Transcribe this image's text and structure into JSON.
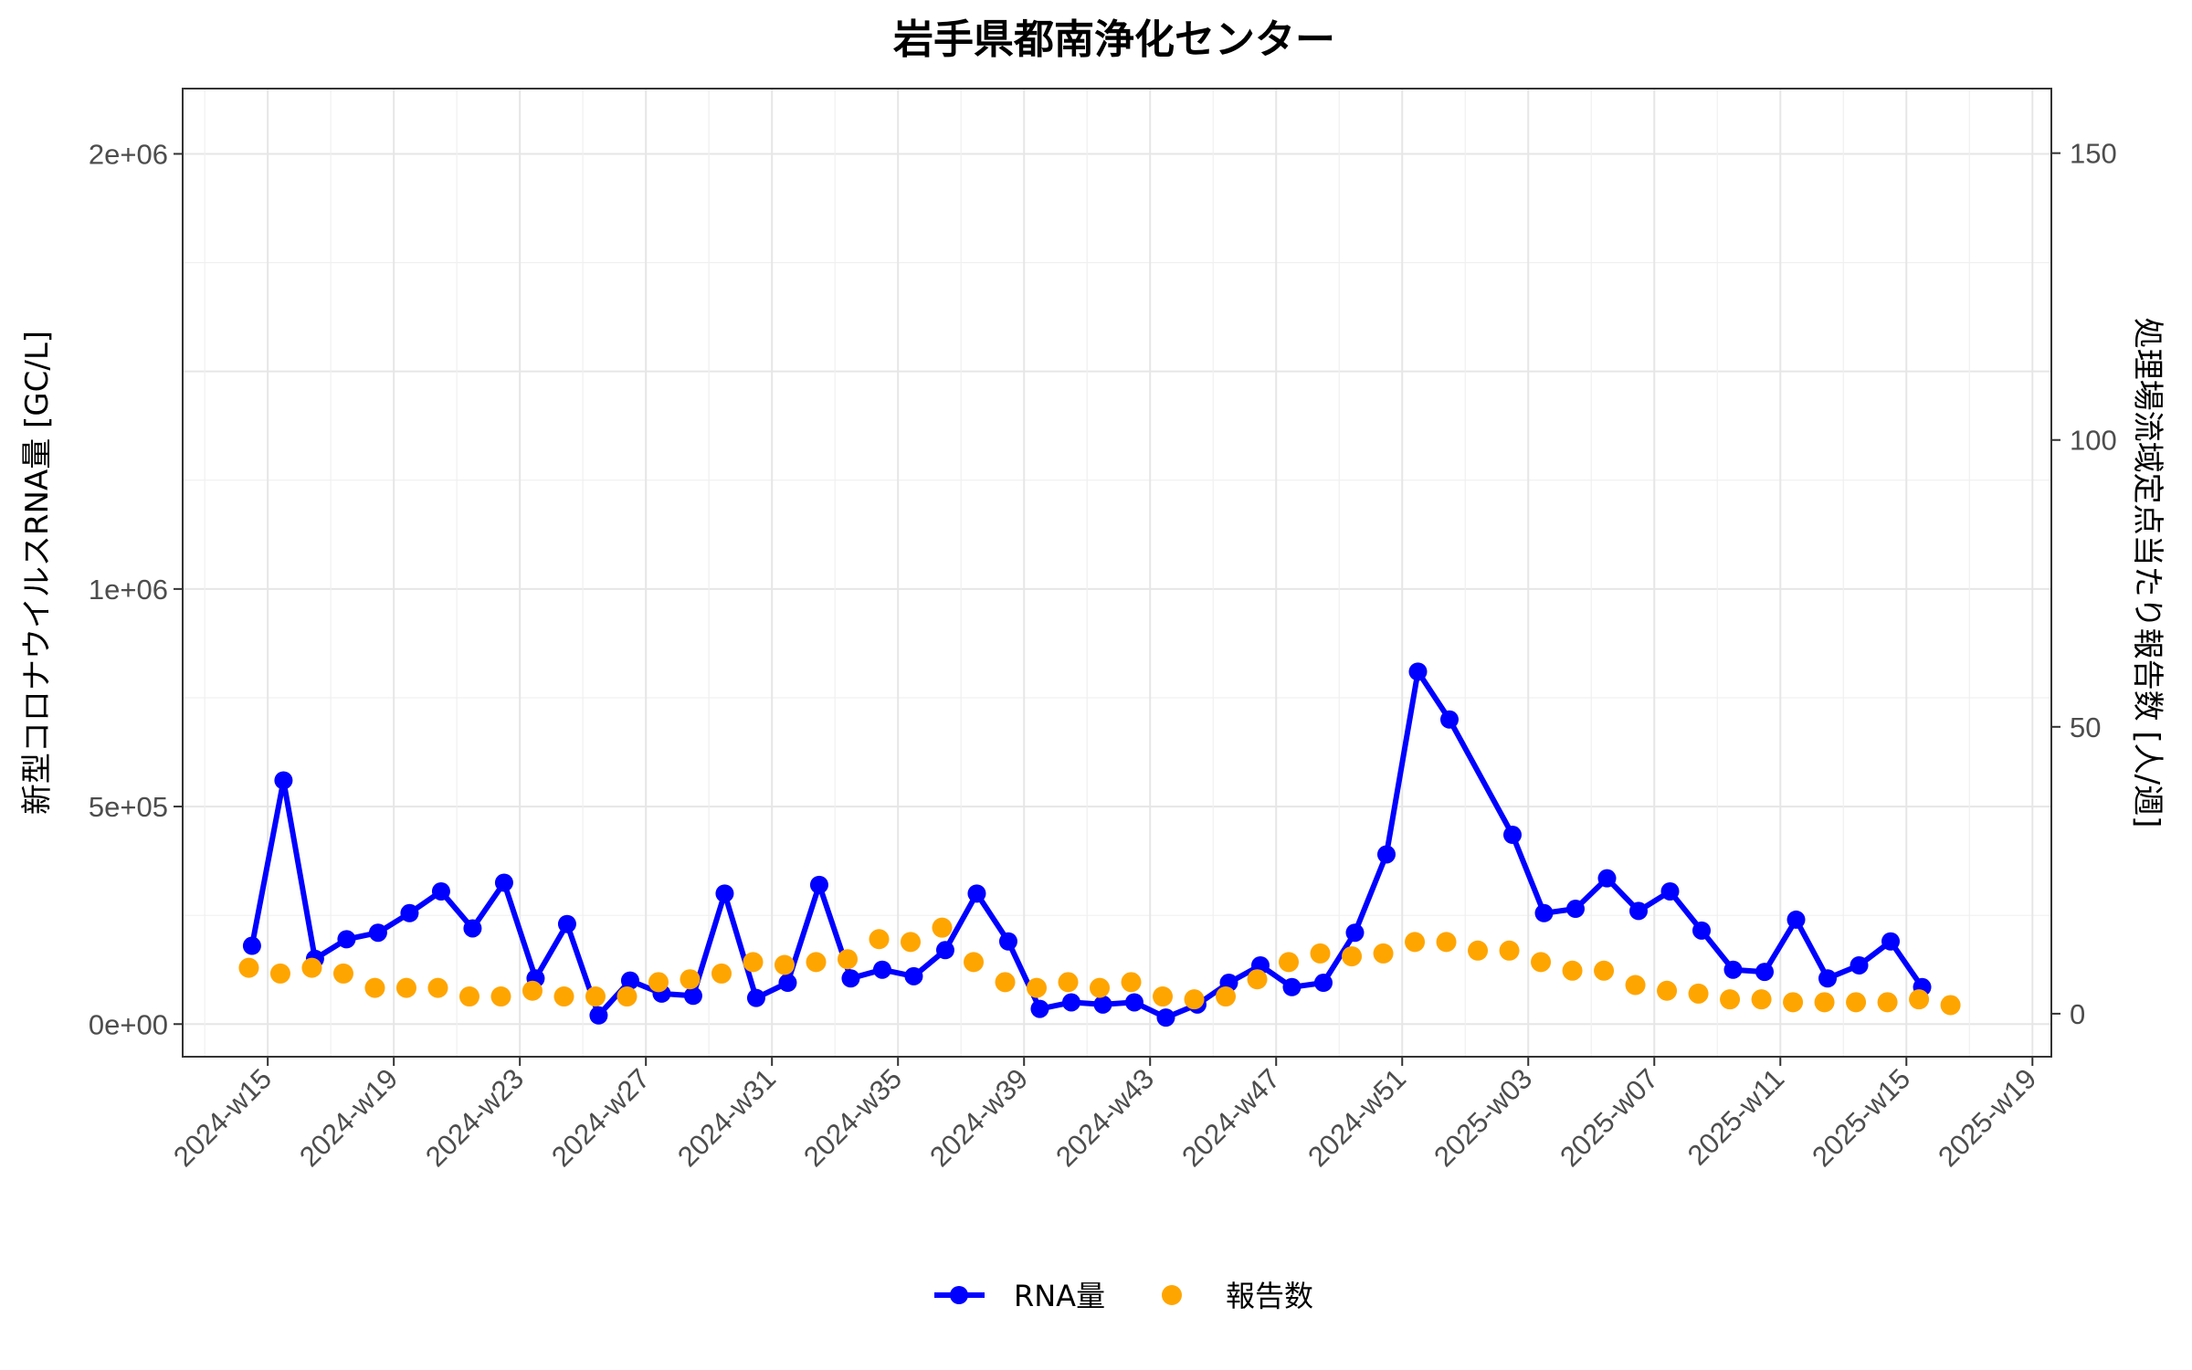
{
  "chart_data": {
    "type": "line",
    "title": "岩手県都南浄化センター",
    "ylabel": "新型コロナウイルスRNA量 [GC/L]",
    "y2label": "処理場流域定点当たり報告数 [人/週]",
    "xlabel": "",
    "x_tick_labels": [
      "2024-w15",
      "2024-w19",
      "2024-w23",
      "2024-w27",
      "2024-w31",
      "2024-w35",
      "2024-w39",
      "2024-w43",
      "2024-w47",
      "2024-w51",
      "2025-w03",
      "2025-w07",
      "2025-w11",
      "2025-w15",
      "2025-w19"
    ],
    "y_ticks": [
      {
        "value": 0,
        "label": "0e+00"
      },
      {
        "value": 500000,
        "label": "5e+05"
      },
      {
        "value": 1000000,
        "label": "1e+06"
      },
      {
        "value": 2000000,
        "label": "2e+06"
      }
    ],
    "y2_ticks": [
      {
        "value": 0,
        "label": "0"
      },
      {
        "value": 50,
        "label": "50"
      },
      {
        "value": 100,
        "label": "100"
      },
      {
        "value": 150,
        "label": "150"
      }
    ],
    "ylim": [
      -75000,
      2150000
    ],
    "y2lim": [
      -7.5,
      161.25
    ],
    "grid": true,
    "legend_position": "bottom",
    "colors": {
      "rna": "#0000FF",
      "reports": "#FFA500"
    },
    "series": [
      {
        "name": "RNA量",
        "type": "line",
        "axis": "left",
        "x": [
          14.5,
          15.5,
          16.5,
          17.5,
          18.5,
          19.5,
          20.5,
          21.5,
          22.5,
          23.5,
          24.5,
          25.5,
          26.5,
          27.5,
          28.5,
          29.5,
          30.5,
          31.5,
          32.5,
          33.5,
          34.5,
          35.5,
          36.5,
          37.5,
          38.5,
          39.5,
          40.5,
          41.5,
          42.5,
          43.5,
          44.5,
          45.5,
          46.5,
          47.5,
          48.5,
          49.5,
          50.5,
          51.5,
          52.5,
          54.5,
          55.5,
          56.5,
          57.5,
          58.5,
          59.5,
          60.5,
          61.5,
          62.5,
          63.5,
          64.5,
          65.5,
          66.5,
          67.5
        ],
        "values": [
          180000,
          560000,
          150000,
          195000,
          210000,
          255000,
          305000,
          220000,
          325000,
          105000,
          230000,
          20000,
          100000,
          70000,
          65000,
          300000,
          60000,
          95000,
          320000,
          105000,
          125000,
          110000,
          170000,
          300000,
          190000,
          35000,
          50000,
          45000,
          50000,
          15000,
          45000,
          95000,
          135000,
          85000,
          95000,
          210000,
          390000,
          810000,
          700000,
          435000,
          255000,
          265000,
          335000,
          260000,
          305000,
          215000,
          125000,
          120000,
          240000,
          105000,
          135000,
          190000,
          85000
        ]
      },
      {
        "name": "報告数",
        "type": "scatter",
        "axis": "right",
        "x": [
          14.4,
          15.4,
          16.4,
          17.4,
          18.4,
          19.4,
          20.4,
          21.4,
          22.4,
          23.4,
          24.4,
          25.4,
          26.4,
          27.4,
          28.4,
          29.4,
          30.4,
          31.4,
          32.4,
          33.4,
          34.4,
          35.4,
          36.4,
          37.4,
          38.4,
          39.4,
          40.4,
          41.4,
          42.4,
          43.4,
          44.4,
          45.4,
          46.4,
          47.4,
          48.4,
          49.4,
          50.4,
          51.4,
          52.4,
          53.4,
          54.4,
          55.4,
          56.4,
          57.4,
          58.4,
          59.4,
          60.4,
          61.4,
          62.4,
          63.4,
          64.4,
          65.4,
          66.4,
          67.4,
          68.4
        ],
        "values": [
          8,
          7,
          8,
          7,
          4.5,
          4.5,
          4.5,
          3,
          3,
          4,
          3,
          3,
          3,
          5.5,
          6,
          7,
          9,
          8.5,
          9,
          9.5,
          13,
          12.5,
          15,
          9,
          5.5,
          4.5,
          5.5,
          4.5,
          5.5,
          3,
          2.5,
          3,
          6,
          9,
          10.5,
          10,
          10.5,
          12.5,
          12.5,
          11,
          11,
          9,
          7.5,
          7.5,
          5,
          4,
          3.5,
          2.5,
          2.5,
          2,
          2,
          2,
          2,
          2.5,
          1.5
        ]
      }
    ]
  }
}
